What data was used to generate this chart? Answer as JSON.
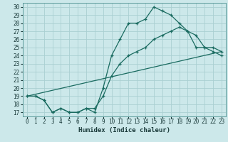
{
  "xlabel": "Humidex (Indice chaleur)",
  "ylabel": "",
  "xlim": [
    -0.5,
    23.5
  ],
  "ylim": [
    16.5,
    30.5
  ],
  "xticks": [
    0,
    1,
    2,
    3,
    4,
    5,
    6,
    7,
    8,
    9,
    10,
    11,
    12,
    13,
    14,
    15,
    16,
    17,
    18,
    19,
    20,
    21,
    22,
    23
  ],
  "yticks": [
    17,
    18,
    19,
    20,
    21,
    22,
    23,
    24,
    25,
    26,
    27,
    28,
    29,
    30
  ],
  "bg_color": "#cce8ea",
  "grid_color": "#aacfd2",
  "line_color": "#1a6b60",
  "line1_x": [
    0,
    1,
    2,
    3,
    4,
    5,
    6,
    7,
    8,
    9,
    10,
    11,
    12,
    13,
    14,
    15,
    16,
    17,
    18,
    19,
    20,
    21,
    22,
    23
  ],
  "line1_y": [
    19,
    19,
    18.5,
    17,
    17.5,
    17,
    17,
    17.5,
    17,
    20,
    24,
    26,
    28,
    28,
    28.5,
    30,
    29.5,
    29,
    28,
    27,
    25,
    25,
    25,
    24.5
  ],
  "line2_x": [
    0,
    1,
    2,
    3,
    4,
    5,
    6,
    7,
    8,
    9,
    10,
    11,
    12,
    13,
    14,
    15,
    16,
    17,
    18,
    19,
    20,
    21,
    22,
    23
  ],
  "line2_y": [
    19,
    19,
    18.5,
    17,
    17.5,
    17,
    17,
    17.5,
    17.5,
    19,
    21.5,
    23,
    24,
    24.5,
    25,
    26,
    26.5,
    27,
    27.5,
    27,
    26.5,
    25,
    24.5,
    24
  ],
  "line3_x": [
    0,
    23
  ],
  "line3_y": [
    19,
    24.5
  ],
  "tick_fontsize": 5.5,
  "label_fontsize": 6.5
}
